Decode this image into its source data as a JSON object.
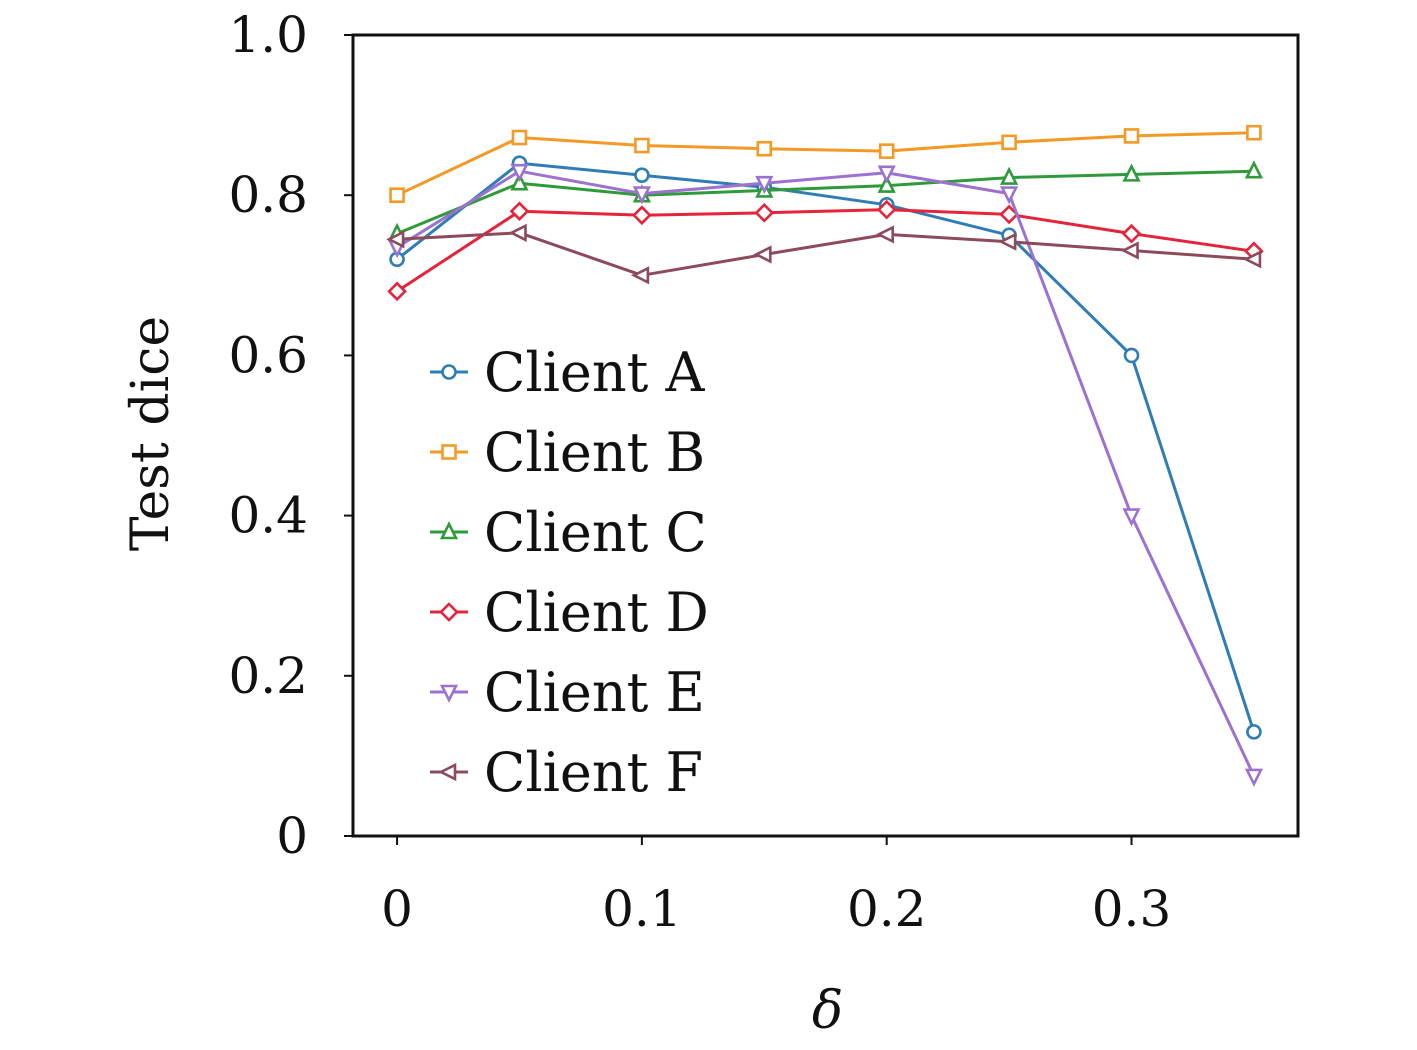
{
  "chart_data": {
    "type": "line",
    "xlabel": "δ",
    "ylabel": "Test dice",
    "xlim": [
      -0.018,
      0.368
    ],
    "ylim": [
      0,
      1.0
    ],
    "x_ticks": [
      0,
      0.1,
      0.2,
      0.3
    ],
    "x_tick_labels": [
      "0",
      "0.1",
      "0.2",
      "0.3"
    ],
    "y_ticks": [
      0,
      0.2,
      0.4,
      0.6,
      0.8,
      1.0
    ],
    "y_tick_labels": [
      "0",
      "0.2",
      "0.4",
      "0.6",
      "0.8",
      "1.0"
    ],
    "grid": false,
    "legend_position": "left-center",
    "x": [
      0,
      0.05,
      0.1,
      0.15,
      0.2,
      0.25,
      0.3,
      0.35
    ],
    "series": [
      {
        "name": "Client A",
        "color": "#2e7db5",
        "marker": "circle",
        "values": [
          0.72,
          0.84,
          0.825,
          0.81,
          0.788,
          0.75,
          0.6,
          0.13
        ]
      },
      {
        "name": "Client B",
        "color": "#f39a26",
        "marker": "square",
        "values": [
          0.8,
          0.872,
          0.862,
          0.858,
          0.855,
          0.866,
          0.874,
          0.878
        ]
      },
      {
        "name": "Client C",
        "color": "#2f9a3a",
        "marker": "triangle-up",
        "values": [
          0.752,
          0.815,
          0.8,
          0.806,
          0.812,
          0.822,
          0.826,
          0.83
        ]
      },
      {
        "name": "Client D",
        "color": "#e3243a",
        "marker": "diamond",
        "values": [
          0.68,
          0.78,
          0.775,
          0.778,
          0.782,
          0.776,
          0.752,
          0.73
        ]
      },
      {
        "name": "Client E",
        "color": "#9b72cf",
        "marker": "triangle-down",
        "values": [
          0.735,
          0.83,
          0.802,
          0.815,
          0.828,
          0.802,
          0.4,
          0.075
        ]
      },
      {
        "name": "Client F",
        "color": "#8c4a5a",
        "marker": "triangle-left",
        "values": [
          0.745,
          0.753,
          0.7,
          0.726,
          0.751,
          0.742,
          0.731,
          0.72
        ]
      }
    ]
  }
}
